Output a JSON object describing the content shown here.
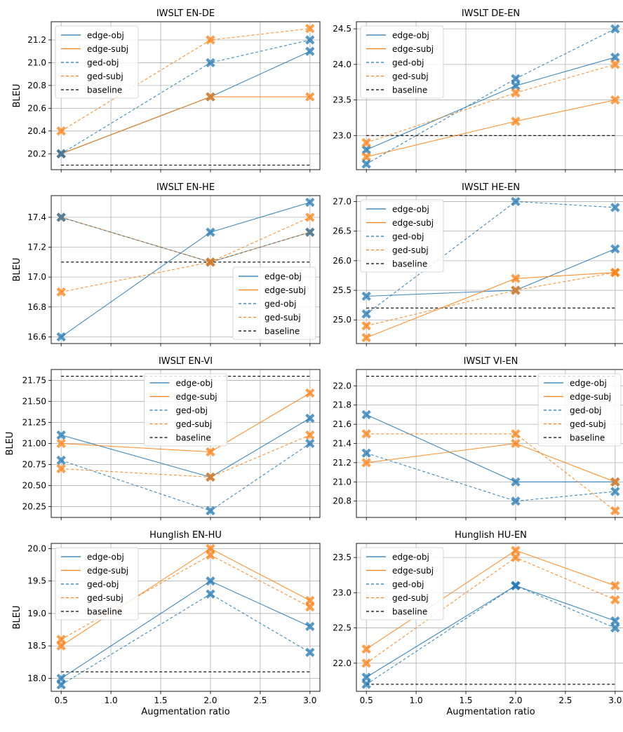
{
  "figure": {
    "xlabel": "Augmentation ratio",
    "ylabel": "BLEU"
  },
  "colors": {
    "obj": "#1f77b4",
    "subj": "#ff7f0e",
    "baseline": "#000000",
    "grid": "#b0b0b0"
  },
  "chart_data": [
    {
      "type": "line",
      "title": "IWSLT EN-DE",
      "x": [
        0.5,
        2.0,
        3.0
      ],
      "xlabel": "",
      "ylabel": "BLEU",
      "xlim": [
        0.4,
        3.1
      ],
      "xticks": [
        "0.5",
        "1.0",
        "1.5",
        "2.0",
        "2.5",
        "3.0"
      ],
      "ylim": [
        20.06,
        21.36
      ],
      "yticks": [
        "20.2",
        "20.4",
        "20.6",
        "20.8",
        "21.0",
        "21.2"
      ],
      "grid": true,
      "legend": "upper-left",
      "series": [
        {
          "name": "edge-obj",
          "values": [
            20.2,
            20.7,
            21.1
          ]
        },
        {
          "name": "edge-subj",
          "values": [
            20.2,
            20.7,
            20.7
          ]
        },
        {
          "name": "ged-obj",
          "values": [
            20.2,
            21.0,
            21.2
          ]
        },
        {
          "name": "ged-subj",
          "values": [
            20.4,
            21.2,
            21.3
          ]
        },
        {
          "name": "baseline",
          "values": [
            20.1,
            20.1,
            20.1
          ]
        }
      ]
    },
    {
      "type": "line",
      "title": "IWSLT DE-EN",
      "x": [
        0.5,
        2.0,
        3.0
      ],
      "xlabel": "",
      "ylabel": "",
      "xlim": [
        0.4,
        3.1
      ],
      "xticks": [
        "0.5",
        "1.0",
        "1.5",
        "2.0",
        "2.5",
        "3.0"
      ],
      "ylim": [
        22.52,
        24.6
      ],
      "yticks": [
        "23.0",
        "23.5",
        "24.0",
        "24.5"
      ],
      "grid": true,
      "legend": "upper-left",
      "series": [
        {
          "name": "edge-obj",
          "values": [
            22.8,
            23.7,
            24.1
          ]
        },
        {
          "name": "edge-subj",
          "values": [
            22.7,
            23.2,
            23.5
          ]
        },
        {
          "name": "ged-obj",
          "values": [
            22.6,
            23.8,
            24.5
          ]
        },
        {
          "name": "ged-subj",
          "values": [
            22.9,
            23.6,
            24.0
          ]
        },
        {
          "name": "baseline",
          "values": [
            23.0,
            23.0,
            23.0
          ]
        }
      ]
    },
    {
      "type": "line",
      "title": "IWSLT EN-HE",
      "x": [
        0.5,
        2.0,
        3.0
      ],
      "xlabel": "",
      "ylabel": "BLEU",
      "xlim": [
        0.4,
        3.1
      ],
      "xticks": [
        "0.5",
        "1.0",
        "1.5",
        "2.0",
        "2.5",
        "3.0"
      ],
      "ylim": [
        16.555,
        17.545
      ],
      "yticks": [
        "16.6",
        "16.8",
        "17.0",
        "17.2",
        "17.4"
      ],
      "grid": true,
      "legend": "lower-right",
      "series": [
        {
          "name": "edge-obj",
          "values": [
            16.6,
            17.3,
            17.5
          ]
        },
        {
          "name": "edge-subj",
          "values": [
            17.4,
            17.1,
            17.3
          ]
        },
        {
          "name": "ged-obj",
          "values": [
            17.4,
            17.1,
            17.3
          ]
        },
        {
          "name": "ged-subj",
          "values": [
            16.9,
            17.1,
            17.4
          ]
        },
        {
          "name": "baseline",
          "values": [
            17.1,
            17.1,
            17.1
          ]
        }
      ]
    },
    {
      "type": "line",
      "title": "IWSLT HE-EN",
      "x": [
        0.5,
        2.0,
        3.0
      ],
      "xlabel": "",
      "ylabel": "",
      "xlim": [
        0.4,
        3.1
      ],
      "xticks": [
        "0.5",
        "1.0",
        "1.5",
        "2.0",
        "2.5",
        "3.0"
      ],
      "ylim": [
        24.6,
        27.1
      ],
      "yticks": [
        "25.0",
        "25.5",
        "26.0",
        "26.5",
        "27.0"
      ],
      "grid": true,
      "legend": "upper-left",
      "series": [
        {
          "name": "edge-obj",
          "values": [
            25.4,
            25.5,
            26.2
          ]
        },
        {
          "name": "edge-subj",
          "values": [
            24.7,
            25.7,
            25.8
          ]
        },
        {
          "name": "ged-obj",
          "values": [
            25.1,
            27.0,
            26.9
          ]
        },
        {
          "name": "ged-subj",
          "values": [
            24.9,
            25.5,
            25.8
          ]
        },
        {
          "name": "baseline",
          "values": [
            25.2,
            25.2,
            25.2
          ]
        }
      ]
    },
    {
      "type": "line",
      "title": "IWSLT EN-VI",
      "x": [
        0.5,
        2.0,
        3.0
      ],
      "xlabel": "",
      "ylabel": "BLEU",
      "xlim": [
        0.4,
        3.1
      ],
      "xticks": [
        "0.5",
        "1.0",
        "1.5",
        "2.0",
        "2.5",
        "3.0"
      ],
      "ylim": [
        20.12,
        21.88
      ],
      "yticks": [
        "20.25",
        "20.50",
        "20.75",
        "21.00",
        "21.25",
        "21.50",
        "21.75"
      ],
      "grid": true,
      "legend": "upper-center",
      "series": [
        {
          "name": "edge-obj",
          "values": [
            21.1,
            20.6,
            21.3
          ]
        },
        {
          "name": "edge-subj",
          "values": [
            21.0,
            20.9,
            21.6
          ]
        },
        {
          "name": "ged-obj",
          "values": [
            20.8,
            20.2,
            21.0
          ]
        },
        {
          "name": "ged-subj",
          "values": [
            20.7,
            20.6,
            21.1
          ]
        },
        {
          "name": "baseline",
          "values": [
            21.8,
            21.8,
            21.8
          ]
        }
      ]
    },
    {
      "type": "line",
      "title": "IWSLT VI-EN",
      "x": [
        0.5,
        2.0,
        3.0
      ],
      "xlabel": "",
      "ylabel": "",
      "xlim": [
        0.4,
        3.1
      ],
      "xticks": [
        "0.5",
        "1.0",
        "1.5",
        "2.0",
        "2.5",
        "3.0"
      ],
      "ylim": [
        20.63,
        22.17
      ],
      "yticks": [
        "20.8",
        "21.0",
        "21.2",
        "21.4",
        "21.6",
        "21.8",
        "22.0"
      ],
      "grid": true,
      "legend": "upper-right",
      "series": [
        {
          "name": "edge-obj",
          "values": [
            21.7,
            21.0,
            21.0
          ]
        },
        {
          "name": "edge-subj",
          "values": [
            21.2,
            21.4,
            21.0
          ]
        },
        {
          "name": "ged-obj",
          "values": [
            21.3,
            20.8,
            20.9
          ]
        },
        {
          "name": "ged-subj",
          "values": [
            21.5,
            21.5,
            20.7
          ]
        },
        {
          "name": "baseline",
          "values": [
            22.1,
            22.1,
            22.1
          ]
        }
      ]
    },
    {
      "type": "line",
      "title": "Hunglish EN-HU",
      "x": [
        0.5,
        2.0,
        3.0
      ],
      "xlabel": "Augmentation ratio",
      "ylabel": "BLEU",
      "xlim": [
        0.4,
        3.1
      ],
      "xticks": [
        "0.5",
        "1.0",
        "1.5",
        "2.0",
        "2.5",
        "3.0"
      ],
      "ylim": [
        17.8,
        20.08
      ],
      "yticks": [
        "18.0",
        "18.5",
        "19.0",
        "19.5",
        "20.0"
      ],
      "grid": true,
      "legend": "upper-left",
      "series": [
        {
          "name": "edge-obj",
          "values": [
            18.0,
            19.5,
            18.8
          ]
        },
        {
          "name": "edge-subj",
          "values": [
            18.5,
            20.0,
            19.2
          ]
        },
        {
          "name": "ged-obj",
          "values": [
            17.9,
            19.3,
            18.4
          ]
        },
        {
          "name": "ged-subj",
          "values": [
            18.6,
            19.9,
            19.1
          ]
        },
        {
          "name": "baseline",
          "values": [
            18.1,
            18.1,
            18.1
          ]
        }
      ]
    },
    {
      "type": "line",
      "title": "Hunglish HU-EN",
      "x": [
        0.5,
        2.0,
        3.0
      ],
      "xlabel": "Augmentation ratio",
      "ylabel": "",
      "xlim": [
        0.4,
        3.1
      ],
      "xticks": [
        "0.5",
        "1.0",
        "1.5",
        "2.0",
        "2.5",
        "3.0"
      ],
      "ylim": [
        21.6,
        23.7
      ],
      "yticks": [
        "22.0",
        "22.5",
        "23.0",
        "23.5"
      ],
      "grid": true,
      "legend": "upper-left",
      "series": [
        {
          "name": "edge-obj",
          "values": [
            21.8,
            23.1,
            22.6
          ]
        },
        {
          "name": "edge-subj",
          "values": [
            22.2,
            23.6,
            23.1
          ]
        },
        {
          "name": "ged-obj",
          "values": [
            21.7,
            23.1,
            22.5
          ]
        },
        {
          "name": "ged-subj",
          "values": [
            22.0,
            23.5,
            22.9
          ]
        },
        {
          "name": "baseline",
          "values": [
            21.7,
            21.7,
            21.7
          ]
        }
      ]
    }
  ]
}
